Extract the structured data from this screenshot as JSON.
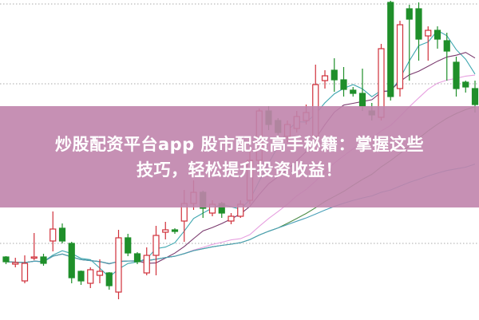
{
  "banner": {
    "title_line1": "炒股配资平台app 股市配资高手秘籍：掌握这些",
    "title_line2": "技巧，轻松提升投资收益！",
    "background": "#c084ac"
  },
  "chart_data": {
    "type": "candlestick",
    "title": "",
    "xlabel": "",
    "ylabel": "",
    "ylim": [
      0,
      400
    ],
    "grid": "horizontal dotted",
    "gridlines": [
      96,
      296,
      396
    ],
    "colors": {
      "up": "#d0303a",
      "down": "#1f8f2a",
      "grid": "#aaaaaa"
    },
    "moving_averages": [
      {
        "period": 5,
        "color": "#3fa7b0"
      },
      {
        "period": 10,
        "color": "#7a3a6e"
      },
      {
        "period": 20,
        "color": "#e7a0e0"
      },
      {
        "period": 30,
        "color": "#4c8c46"
      },
      {
        "period": 50,
        "color": "#4aa0b8"
      }
    ],
    "candles": [
      [
        79,
        73,
        80,
        70
      ],
      [
        70,
        72,
        78,
        66
      ],
      [
        49,
        71,
        81,
        46
      ],
      [
        78,
        79,
        109,
        75
      ],
      [
        79,
        71,
        83,
        68
      ],
      [
        99,
        114,
        136,
        86
      ],
      [
        115,
        99,
        121,
        96
      ],
      [
        96,
        53,
        98,
        46
      ],
      [
        61,
        49,
        62,
        44
      ],
      [
        46,
        63,
        66,
        40
      ],
      [
        56,
        61,
        76,
        46
      ],
      [
        59,
        43,
        60,
        38
      ],
      [
        35,
        103,
        113,
        26
      ],
      [
        103,
        84,
        108,
        80
      ],
      [
        83,
        73,
        85,
        70
      ],
      [
        59,
        81,
        91,
        56
      ],
      [
        81,
        106,
        118,
        56
      ],
      [
        110,
        113,
        123,
        101
      ],
      [
        113,
        111,
        115,
        108
      ],
      [
        124,
        146,
        163,
        98
      ],
      [
        146,
        160,
        175,
        138
      ],
      [
        160,
        140,
        162,
        128
      ],
      [
        134,
        145,
        150,
        130
      ],
      [
        146,
        134,
        148,
        128
      ],
      [
        124,
        130,
        134,
        120
      ],
      [
        130,
        145,
        150,
        128
      ],
      [
        150,
        200,
        215,
        145
      ],
      [
        200,
        262,
        265,
        195
      ],
      [
        262,
        245,
        268,
        238
      ],
      [
        250,
        235,
        253,
        225
      ],
      [
        230,
        245,
        250,
        222
      ],
      [
        240,
        255,
        262,
        235
      ],
      [
        250,
        260,
        270,
        245
      ],
      [
        230,
        295,
        320,
        228
      ],
      [
        300,
        306,
        313,
        290
      ],
      [
        313,
        301,
        328,
        286
      ],
      [
        301,
        289,
        317,
        280
      ],
      [
        288,
        284,
        292,
        280
      ],
      [
        284,
        268,
        315,
        262
      ],
      [
        262,
        257,
        272,
        250
      ],
      [
        254,
        340,
        346,
        250
      ],
      [
        398,
        280,
        400,
        275
      ],
      [
        290,
        370,
        375,
        280
      ],
      [
        390,
        377,
        395,
        300
      ],
      [
        390,
        352,
        398,
        325
      ],
      [
        356,
        363,
        368,
        325
      ],
      [
        363,
        352,
        368,
        340
      ],
      [
        350,
        337,
        360,
        300
      ],
      [
        323,
        290,
        330,
        280
      ],
      [
        298,
        292,
        300,
        285
      ],
      [
        290,
        270,
        300,
        260
      ]
    ]
  }
}
